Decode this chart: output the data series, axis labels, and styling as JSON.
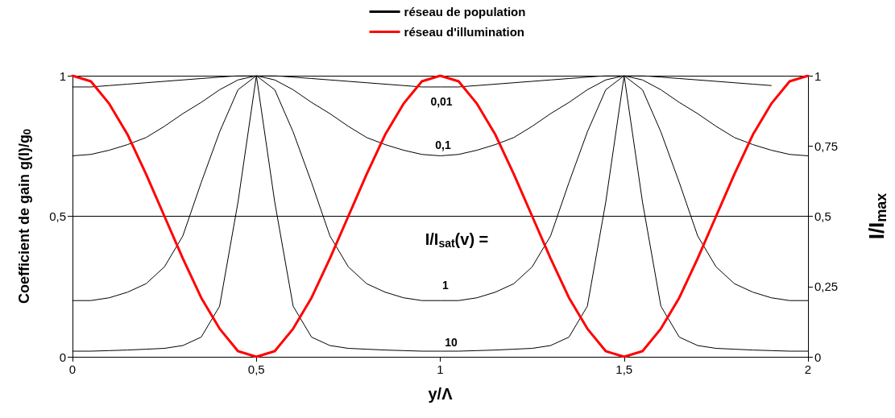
{
  "chart_data": {
    "type": "line",
    "xlabel": "y/Λ",
    "ylabel": "Coefficient de gain g(I)/g$_{0}$",
    "y2label": "I/I$_{max}$",
    "x": [
      0,
      0.05,
      0.1,
      0.15,
      0.2,
      0.25,
      0.3,
      0.35,
      0.4,
      0.45,
      0.5,
      0.55,
      0.6,
      0.65,
      0.7,
      0.75,
      0.8,
      0.85,
      0.9,
      0.95,
      1,
      1.05,
      1.1,
      1.15,
      1.2,
      1.25,
      1.3,
      1.35,
      1.4,
      1.45,
      1.5,
      1.55,
      1.6,
      1.65,
      1.7,
      1.75,
      1.8,
      1.85,
      1.9,
      1.95,
      2
    ],
    "series": [
      {
        "name": "réseau de population",
        "color": "#000000",
        "values": [
          0.96,
          0.96,
          0.965,
          0.97,
          0.975,
          0.98,
          0.985,
          0.99,
          0.995,
          1,
          1,
          1,
          0.995,
          0.99,
          0.985,
          0.98,
          0.975,
          0.97,
          0.965,
          0.96,
          0.96,
          0.96,
          0.965,
          0.97,
          0.975,
          0.98,
          0.985,
          0.99,
          0.995,
          1,
          1,
          1,
          0.995,
          0.99,
          0.985,
          0.98,
          0.975,
          0.97,
          0.965,
          null,
          null
        ]
      },
      {
        "color": "#000000",
        "values": [
          0.715,
          0.72,
          0.735,
          0.755,
          0.78,
          0.82,
          0.865,
          0.905,
          0.95,
          0.985,
          1,
          0.985,
          0.95,
          0.905,
          0.865,
          0.82,
          0.78,
          0.755,
          0.735,
          0.72,
          0.715,
          0.72,
          0.735,
          0.755,
          0.78,
          0.82,
          0.865,
          0.905,
          0.95,
          0.985,
          1,
          0.985,
          0.95,
          0.905,
          0.865,
          0.82,
          0.78,
          0.755,
          0.735,
          0.72,
          0.715
        ]
      },
      {
        "color": "#000000",
        "values": [
          0.2,
          0.2,
          0.21,
          0.23,
          0.26,
          0.32,
          0.43,
          0.62,
          0.8,
          0.95,
          1,
          0.95,
          0.8,
          0.62,
          0.43,
          0.32,
          0.26,
          0.23,
          0.21,
          0.2,
          0.2,
          0.2,
          0.21,
          0.23,
          0.26,
          0.32,
          0.43,
          0.62,
          0.8,
          0.95,
          1,
          0.95,
          0.8,
          0.62,
          0.43,
          0.32,
          0.26,
          0.23,
          0.21,
          0.2,
          0.2
        ]
      },
      {
        "color": "#000000",
        "values": [
          0.02,
          0.02,
          0.022,
          0.024,
          0.027,
          0.03,
          0.04,
          0.07,
          0.18,
          0.55,
          1,
          0.55,
          0.18,
          0.07,
          0.04,
          0.03,
          0.027,
          0.024,
          0.022,
          0.02,
          0.02,
          0.02,
          0.022,
          0.024,
          0.027,
          0.03,
          0.04,
          0.07,
          0.18,
          0.55,
          1,
          0.55,
          0.18,
          0.07,
          0.04,
          0.03,
          0.027,
          0.024,
          0.022,
          0.02,
          0.02
        ]
      },
      {
        "name": "réseau d'illumination",
        "color": "#ff0000",
        "axis": "y2",
        "values": [
          1,
          0.98,
          0.9,
          0.79,
          0.65,
          0.5,
          0.35,
          0.21,
          0.1,
          0.02,
          0,
          0.02,
          0.1,
          0.21,
          0.35,
          0.5,
          0.65,
          0.79,
          0.9,
          0.98,
          1,
          0.98,
          0.9,
          0.79,
          0.65,
          0.5,
          0.35,
          0.21,
          0.1,
          0.02,
          0,
          0.02,
          0.1,
          0.21,
          0.35,
          0.5,
          0.65,
          0.79,
          0.9,
          0.98,
          1
        ]
      }
    ],
    "xlim": [
      0,
      2
    ],
    "xticks": [
      0,
      {
        "value": 0.5,
        "label": "0,5"
      },
      1,
      {
        "value": 1.5,
        "label": "1,5"
      },
      2
    ],
    "ylim": [
      0,
      1
    ],
    "yticks": [
      0,
      {
        "value": 0.5,
        "label": "0,5"
      },
      1
    ],
    "y2lim": [
      0,
      1
    ],
    "y2ticks": [
      0,
      {
        "value": 0.25,
        "label": "0,25"
      },
      {
        "value": 0.5,
        "label": "0,5"
      },
      {
        "value": 0.75,
        "label": "0,75"
      },
      1
    ],
    "annotations": [
      "0,01",
      "0,1",
      "1",
      "10",
      "I/I$_{sat}$(v) ="
    ],
    "grid": "y",
    "legend": "top",
    "marker": "none",
    "line_style": "solid"
  }
}
